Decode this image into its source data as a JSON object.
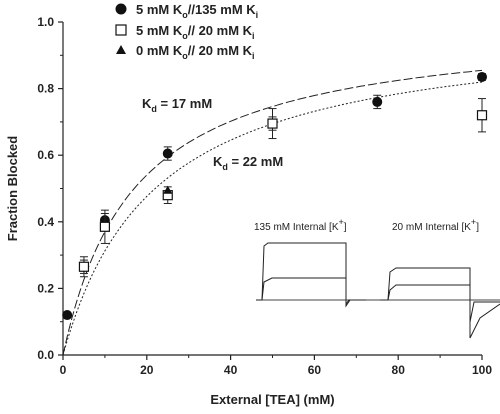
{
  "chart_data": {
    "type": "scatter",
    "xlabel": "External [TEA] (mM)",
    "ylabel": "Fraction Blocked",
    "xlim": [
      0,
      100
    ],
    "ylim": [
      0.0,
      1.0
    ],
    "x_ticks": [
      "0",
      "20",
      "40",
      "60",
      "80",
      "100"
    ],
    "y_ticks": [
      "0.0",
      "0.2",
      "0.4",
      "0.6",
      "0.8",
      "1.0"
    ],
    "grid": false,
    "legend_position": "top-left",
    "series": [
      {
        "name": "5 mM Ko//135 mM Ki",
        "legend_parts": [
          "5 mM K",
          "o",
          "//135 mM K",
          "i"
        ],
        "marker": "filled-circle",
        "points": [
          {
            "x": 1,
            "y": 0.12,
            "err": 0.0
          },
          {
            "x": 5,
            "y": 0.265,
            "err": 0.02
          },
          {
            "x": 10,
            "y": 0.405,
            "err": 0.02
          },
          {
            "x": 25,
            "y": 0.605,
            "err": 0.02
          },
          {
            "x": 50,
            "y": 0.695,
            "err": 0.02
          },
          {
            "x": 75,
            "y": 0.76,
            "err": 0.02
          },
          {
            "x": 100,
            "y": 0.835,
            "err": 0.01
          }
        ]
      },
      {
        "name": "5 mM Ko// 20 mM Ki",
        "legend_parts": [
          "5 mM K",
          "o",
          "// 20 mM K",
          "i"
        ],
        "marker": "open-square",
        "points": [
          {
            "x": 5,
            "y": 0.265,
            "err": 0.03
          },
          {
            "x": 10,
            "y": 0.385,
            "err": 0.05
          },
          {
            "x": 25,
            "y": 0.48,
            "err": 0.025
          },
          {
            "x": 50,
            "y": 0.695,
            "err": 0.045
          },
          {
            "x": 100,
            "y": 0.72,
            "err": 0.05
          }
        ]
      },
      {
        "name": "0 mM Ko// 20 mM Ki",
        "legend_parts": [
          "0 mM K",
          "o",
          "// 20 mM K",
          "i"
        ],
        "marker": "filled-triangle",
        "points": [
          {
            "x": 25,
            "y": 0.495,
            "err": 0.0
          }
        ]
      }
    ],
    "fits": [
      {
        "kd": 17,
        "label_parts": [
          "K",
          "d",
          " = 17 mM"
        ],
        "style": "dashed",
        "max": 1.0
      },
      {
        "kd": 22,
        "label_parts": [
          "K",
          "d",
          " = 22 mM"
        ],
        "style": "dotted",
        "max": 1.0
      }
    ],
    "inset": {
      "labels": [
        {
          "parts": [
            "135 mM Internal [K",
            "+",
            "]"
          ]
        },
        {
          "parts": [
            "20 mM Internal [K",
            "+",
            "]"
          ]
        }
      ]
    }
  }
}
